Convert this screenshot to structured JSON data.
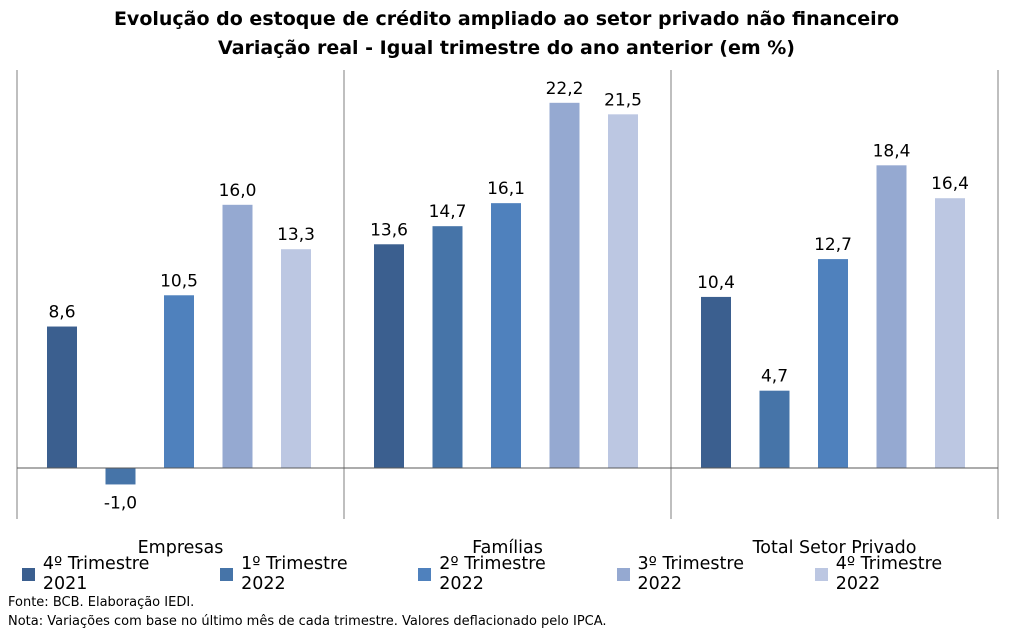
{
  "title": "Evolução do estoque de crédito ampliado ao setor privado não financeiro",
  "subtitle": "Variação real - Igual trimestre do ano anterior (em %)",
  "source": "Fonte: BCB. Elaboração IEDI.",
  "footnote": "Nota: Variações com base no último mês de cada trimestre. Valores deflacionado pelo IPCA.",
  "chart_data": {
    "type": "bar",
    "title": "Evolução do estoque de crédito ampliado ao setor privado não financeiro",
    "subtitle": "Variação real - Igual trimestre do ano anterior (em %)",
    "categories": [
      "Empresas",
      "Famílias",
      "Total Setor Privado"
    ],
    "series": [
      {
        "name": "4º Trimestre 2021",
        "color": "#3b5f8f",
        "values": [
          8.6,
          13.6,
          10.4
        ],
        "labels": [
          "8,6",
          "13,6",
          "10,4"
        ]
      },
      {
        "name": "1º Trimestre 2022",
        "color": "#4674a8",
        "values": [
          -1.0,
          14.7,
          4.7
        ],
        "labels": [
          "-1,0",
          "14,7",
          "4,7"
        ]
      },
      {
        "name": "2º Trimestre 2022",
        "color": "#4f81bd",
        "values": [
          10.5,
          16.1,
          12.7
        ],
        "labels": [
          "10,5",
          "16,1",
          "12,7"
        ]
      },
      {
        "name": "3º Trimestre 2022",
        "color": "#95a9d1",
        "values": [
          16.0,
          22.2,
          18.4
        ],
        "labels": [
          "16,0",
          "22,2",
          "18,4"
        ]
      },
      {
        "name": "4º Trimestre 2022",
        "color": "#bcc7e2",
        "values": [
          13.3,
          21.5,
          16.4
        ],
        "labels": [
          "13,3",
          "21,5",
          "16,4"
        ]
      }
    ],
    "xlabel": "",
    "ylabel": "",
    "grid": false,
    "legend": "bottom"
  }
}
